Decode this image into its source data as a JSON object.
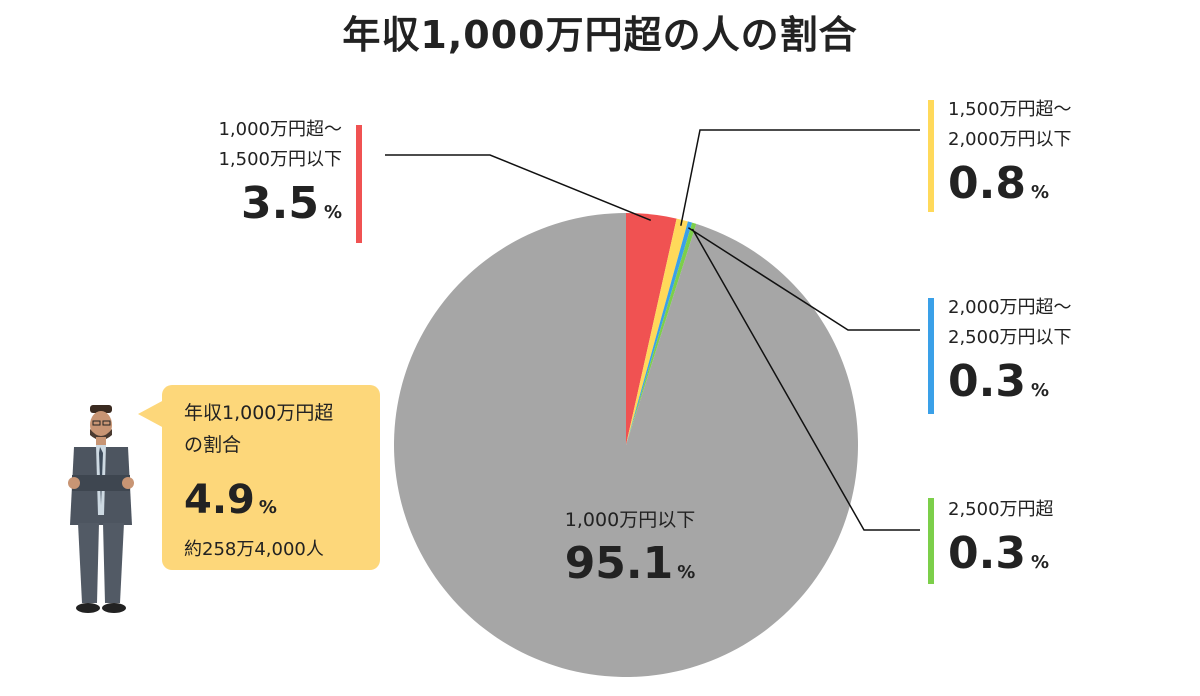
{
  "chart_data": {
    "type": "pie",
    "title": "年収1,000万円超の人の割合",
    "unit": "%",
    "slices": [
      {
        "label": "1,000万円以下",
        "value": 95.1,
        "display": "95.1",
        "color": "#a6a6a6"
      },
      {
        "label": "1,000万円超〜\n1,500万円以下",
        "value": 3.5,
        "display": "3.5",
        "color": "#f05252"
      },
      {
        "label": "1,500万円超〜\n2,000万円以下",
        "value": 0.8,
        "display": "0.8",
        "color": "#ffd95a"
      },
      {
        "label": "2,000万円超〜\n2,500万円以下",
        "value": 0.3,
        "display": "0.3",
        "color": "#3aa0e8"
      },
      {
        "label": "2,500万円超",
        "value": 0.3,
        "display": "0.3",
        "color": "#7ccf4a"
      }
    ]
  },
  "callout": {
    "title": "年収1,000万円超\nの割合",
    "percent": "4.9",
    "unit": "%",
    "people": "約258万4,000人",
    "bg_color": "#fdd77a"
  }
}
